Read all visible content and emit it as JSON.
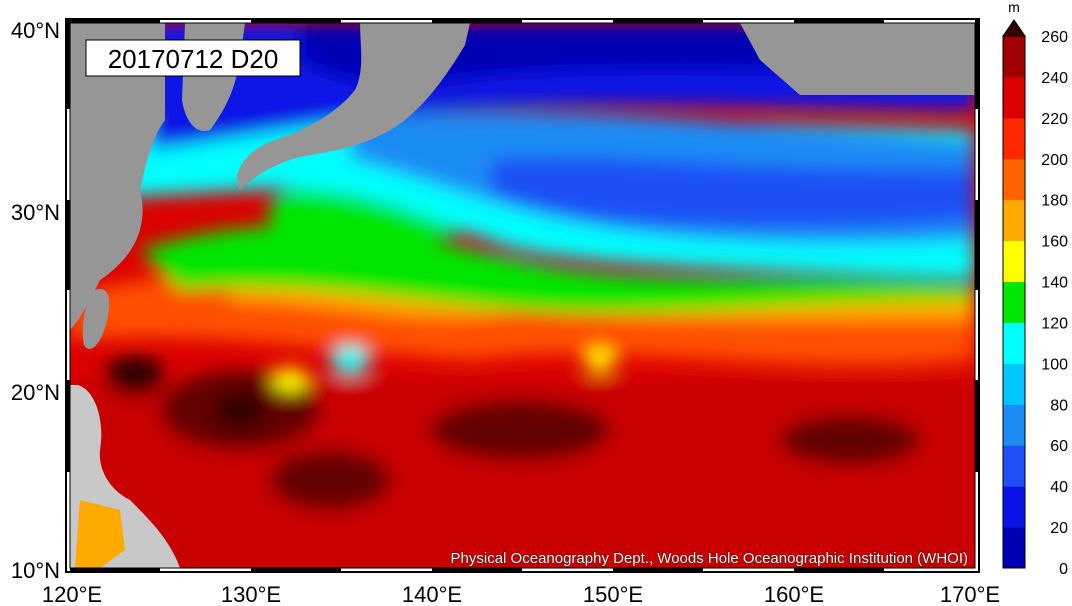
{
  "map": {
    "date_label": "20170712 D20",
    "credit": "Physical Oceanography Dept., Woods Hole Oceanographic Institution (WHOI)",
    "lat_ticks": [
      "40°N",
      "30°N",
      "20°N",
      "10°N"
    ],
    "lon_ticks": [
      "120°E",
      "130°E",
      "140°E",
      "150°E",
      "160°E",
      "170°E"
    ],
    "extent": {
      "lon_min": 120,
      "lon_max": 170,
      "lat_min": 10,
      "lat_max": 40
    }
  },
  "colorbar": {
    "unit": "m",
    "ticks": [
      "260",
      "240",
      "220",
      "200",
      "180",
      "160",
      "140",
      "120",
      "100",
      "80",
      "60",
      "40",
      "20",
      "0"
    ],
    "colors": [
      "#0000b4",
      "#0a14e6",
      "#1e50f5",
      "#1e8cf5",
      "#00c8ff",
      "#00ffff",
      "#00e600",
      "#ffff00",
      "#ffaa00",
      "#ff6400",
      "#ff2800",
      "#dc0000",
      "#a00000",
      "#640000",
      "#320000"
    ]
  },
  "colors": {
    "land": "#969696",
    "land_light": "#c8c8c8",
    "frame": "#000000"
  }
}
